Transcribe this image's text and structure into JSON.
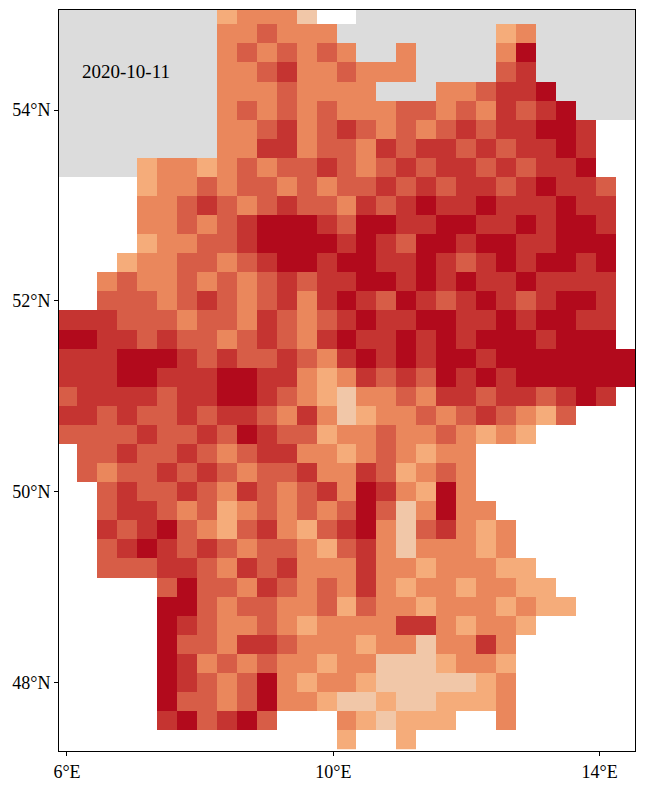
{
  "chart_data": {
    "type": "heatmap",
    "title": "2020-10-11",
    "x": [
      6,
      6.3,
      6.6,
      6.9,
      7.2,
      7.5,
      7.8,
      8.1,
      8.4,
      8.7,
      9,
      9.3,
      9.6,
      9.9,
      10.2,
      10.5,
      10.8,
      11.1,
      11.4,
      11.7,
      12,
      12.3,
      12.6,
      12.9,
      13.2,
      13.5,
      13.8,
      14.1,
      14.4
    ],
    "y": [
      55,
      54.8,
      54.6,
      54.4,
      54.2,
      54,
      53.8,
      53.6,
      53.4,
      53.2,
      53,
      52.8,
      52.6,
      52.4,
      52.2,
      52,
      51.8,
      51.6,
      51.4,
      51.2,
      51,
      50.8,
      50.6,
      50.4,
      50.2,
      50,
      49.8,
      49.6,
      49.4,
      49.2,
      49,
      48.8,
      48.6,
      48.4,
      48.2,
      48,
      47.8,
      47.6,
      47.4
    ],
    "cells": [
      [
        0,
        0,
        0,
        0,
        0,
        0,
        0,
        0,
        2,
        3,
        3,
        3,
        1,
        null,
        null,
        0,
        0,
        0,
        0,
        0,
        0,
        0,
        0,
        0,
        0,
        0,
        0,
        0,
        0
      ],
      [
        0,
        0,
        0,
        0,
        0,
        0,
        0,
        0,
        3,
        3,
        4,
        3,
        3,
        3,
        0,
        0,
        0,
        0,
        0,
        0,
        0,
        0,
        2,
        3,
        0,
        0,
        0,
        0,
        0
      ],
      [
        0,
        0,
        0,
        0,
        0,
        0,
        0,
        0,
        3,
        4,
        3,
        4,
        3,
        4,
        3,
        0,
        0,
        3,
        0,
        0,
        0,
        0,
        3,
        6,
        0,
        0,
        0,
        0,
        0
      ],
      [
        0,
        0,
        0,
        0,
        0,
        0,
        0,
        0,
        3,
        3,
        4,
        5,
        3,
        3,
        4,
        3,
        3,
        3,
        0,
        0,
        0,
        0,
        4,
        5,
        0,
        0,
        0,
        0,
        0
      ],
      [
        0,
        0,
        0,
        0,
        0,
        0,
        0,
        0,
        3,
        3,
        3,
        4,
        3,
        3,
        3,
        3,
        0,
        0,
        0,
        3,
        3,
        4,
        5,
        5,
        6,
        0,
        0,
        0,
        0
      ],
      [
        0,
        0,
        0,
        0,
        0,
        0,
        0,
        0,
        3,
        4,
        3,
        4,
        3,
        4,
        3,
        3,
        3,
        4,
        4,
        3,
        4,
        3,
        5,
        4,
        5,
        6,
        0,
        0,
        0
      ],
      [
        0,
        0,
        0,
        0,
        0,
        0,
        0,
        0,
        3,
        3,
        4,
        5,
        3,
        4,
        5,
        4,
        3,
        4,
        3,
        4,
        5,
        4,
        5,
        5,
        6,
        6,
        5,
        null,
        null
      ],
      [
        0,
        0,
        0,
        0,
        0,
        0,
        0,
        0,
        3,
        3,
        5,
        5,
        3,
        4,
        4,
        3,
        5,
        4,
        5,
        5,
        4,
        5,
        4,
        5,
        5,
        6,
        5,
        null,
        null
      ],
      [
        0,
        0,
        0,
        0,
        2,
        3,
        3,
        2,
        3,
        4,
        3,
        4,
        4,
        5,
        4,
        3,
        4,
        5,
        4,
        5,
        5,
        4,
        5,
        4,
        5,
        5,
        6,
        null,
        null
      ],
      [
        null,
        null,
        null,
        null,
        2,
        3,
        3,
        4,
        3,
        4,
        4,
        3,
        4,
        3,
        4,
        4,
        5,
        4,
        5,
        4,
        5,
        5,
        4,
        5,
        6,
        5,
        5,
        4,
        null
      ],
      [
        null,
        null,
        null,
        null,
        3,
        3,
        4,
        5,
        4,
        3,
        4,
        5,
        4,
        4,
        3,
        5,
        4,
        5,
        6,
        5,
        5,
        6,
        5,
        5,
        5,
        6,
        5,
        5,
        null
      ],
      [
        null,
        null,
        null,
        null,
        3,
        3,
        4,
        3,
        4,
        5,
        6,
        6,
        6,
        5,
        4,
        6,
        6,
        5,
        5,
        6,
        6,
        5,
        5,
        6,
        5,
        6,
        6,
        5,
        null
      ],
      [
        null,
        null,
        null,
        null,
        2,
        3,
        3,
        4,
        4,
        5,
        6,
        6,
        6,
        6,
        5,
        6,
        5,
        4,
        6,
        6,
        5,
        6,
        6,
        5,
        5,
        6,
        6,
        6,
        null
      ],
      [
        null,
        null,
        null,
        2,
        3,
        3,
        4,
        4,
        3,
        4,
        5,
        6,
        6,
        5,
        6,
        6,
        5,
        5,
        6,
        5,
        4,
        5,
        6,
        5,
        6,
        6,
        5,
        6,
        null
      ],
      [
        null,
        null,
        3,
        4,
        3,
        3,
        4,
        3,
        4,
        3,
        4,
        5,
        4,
        5,
        5,
        6,
        6,
        5,
        6,
        5,
        6,
        5,
        5,
        6,
        5,
        5,
        5,
        5,
        null
      ],
      [
        null,
        null,
        4,
        4,
        4,
        3,
        4,
        5,
        4,
        3,
        4,
        5,
        3,
        5,
        6,
        5,
        4,
        6,
        5,
        4,
        5,
        6,
        5,
        4,
        5,
        6,
        6,
        5,
        null
      ],
      [
        5,
        5,
        5,
        4,
        4,
        4,
        3,
        4,
        4,
        3,
        5,
        4,
        3,
        4,
        5,
        6,
        5,
        5,
        6,
        6,
        5,
        5,
        6,
        5,
        6,
        6,
        5,
        5,
        null
      ],
      [
        6,
        6,
        5,
        5,
        4,
        5,
        4,
        4,
        3,
        4,
        5,
        4,
        3,
        5,
        6,
        5,
        5,
        6,
        5,
        6,
        5,
        6,
        6,
        6,
        5,
        6,
        6,
        6,
        null
      ],
      [
        5,
        5,
        5,
        6,
        6,
        6,
        5,
        4,
        5,
        4,
        4,
        5,
        4,
        3,
        5,
        6,
        5,
        6,
        5,
        6,
        6,
        5,
        6,
        6,
        6,
        6,
        6,
        6,
        6
      ],
      [
        5,
        5,
        5,
        6,
        6,
        5,
        5,
        5,
        6,
        6,
        5,
        5,
        3,
        2,
        3,
        5,
        4,
        5,
        4,
        6,
        5,
        6,
        5,
        6,
        6,
        6,
        6,
        6,
        6
      ],
      [
        4,
        5,
        5,
        5,
        5,
        4,
        5,
        5,
        6,
        6,
        5,
        4,
        3,
        2,
        1,
        3,
        3,
        4,
        3,
        5,
        5,
        4,
        5,
        5,
        4,
        5,
        6,
        5,
        null
      ],
      [
        5,
        5,
        4,
        5,
        4,
        4,
        5,
        4,
        5,
        5,
        4,
        3,
        5,
        3,
        1,
        2,
        3,
        3,
        4,
        3,
        4,
        5,
        4,
        3,
        2,
        4,
        null,
        null,
        null
      ],
      [
        4,
        4,
        4,
        4,
        5,
        4,
        4,
        5,
        4,
        6,
        5,
        4,
        4,
        2,
        3,
        3,
        4,
        3,
        3,
        4,
        3,
        2,
        3,
        2,
        null,
        null,
        null,
        null,
        null
      ],
      [
        null,
        4,
        4,
        5,
        4,
        4,
        5,
        4,
        3,
        4,
        5,
        5,
        3,
        3,
        2,
        3,
        4,
        3,
        2,
        3,
        3,
        null,
        null,
        null,
        null,
        null,
        null,
        null,
        null
      ],
      [
        null,
        4,
        3,
        4,
        4,
        5,
        4,
        5,
        4,
        3,
        4,
        4,
        5,
        3,
        3,
        5,
        4,
        2,
        3,
        4,
        3,
        null,
        null,
        null,
        null,
        null,
        null,
        null,
        null
      ],
      [
        null,
        null,
        4,
        5,
        4,
        4,
        5,
        4,
        3,
        5,
        4,
        3,
        4,
        5,
        3,
        6,
        5,
        3,
        2,
        6,
        3,
        null,
        null,
        null,
        null,
        null,
        null,
        null,
        null
      ],
      [
        null,
        null,
        4,
        5,
        5,
        4,
        3,
        4,
        2,
        3,
        4,
        3,
        4,
        3,
        4,
        6,
        4,
        1,
        3,
        6,
        3,
        3,
        null,
        null,
        null,
        null,
        null,
        null,
        null
      ],
      [
        null,
        null,
        5,
        4,
        5,
        6,
        4,
        3,
        2,
        4,
        5,
        3,
        2,
        4,
        5,
        6,
        3,
        1,
        4,
        5,
        3,
        2,
        3,
        null,
        null,
        null,
        null,
        null,
        null
      ],
      [
        null,
        null,
        4,
        5,
        6,
        5,
        4,
        5,
        4,
        3,
        4,
        4,
        3,
        2,
        4,
        5,
        3,
        1,
        3,
        3,
        3,
        2,
        3,
        null,
        null,
        null,
        null,
        null,
        null
      ],
      [
        null,
        null,
        4,
        4,
        4,
        5,
        5,
        4,
        3,
        5,
        4,
        5,
        3,
        3,
        3,
        5,
        3,
        3,
        2,
        3,
        3,
        3,
        2,
        2,
        null,
        null,
        null,
        null,
        null
      ],
      [
        null,
        null,
        null,
        null,
        null,
        4,
        6,
        4,
        4,
        3,
        5,
        4,
        3,
        4,
        3,
        5,
        3,
        2,
        3,
        3,
        2,
        3,
        3,
        2,
        2,
        null,
        null,
        null,
        null
      ],
      [
        null,
        null,
        null,
        null,
        null,
        6,
        6,
        4,
        3,
        4,
        4,
        3,
        3,
        4,
        2,
        4,
        3,
        3,
        2,
        3,
        3,
        3,
        2,
        3,
        2,
        2,
        null,
        null,
        null
      ],
      [
        null,
        null,
        null,
        null,
        null,
        6,
        5,
        4,
        3,
        3,
        4,
        3,
        2,
        3,
        3,
        3,
        3,
        5,
        5,
        3,
        2,
        3,
        3,
        2,
        null,
        null,
        null,
        null,
        null
      ],
      [
        null,
        null,
        null,
        null,
        null,
        6,
        4,
        4,
        3,
        5,
        5,
        4,
        3,
        3,
        3,
        2,
        3,
        3,
        1,
        3,
        3,
        5,
        3,
        null,
        null,
        null,
        null,
        null,
        null
      ],
      [
        null,
        null,
        null,
        null,
        null,
        6,
        5,
        3,
        4,
        3,
        4,
        3,
        3,
        2,
        3,
        3,
        1,
        1,
        1,
        2,
        3,
        3,
        2,
        null,
        null,
        null,
        null,
        null,
        null
      ],
      [
        null,
        null,
        null,
        null,
        null,
        6,
        5,
        4,
        3,
        4,
        6,
        3,
        2,
        3,
        3,
        2,
        1,
        1,
        1,
        1,
        1,
        2,
        3,
        null,
        null,
        null,
        null,
        null,
        null
      ],
      [
        null,
        null,
        null,
        null,
        null,
        6,
        4,
        4,
        3,
        4,
        6,
        3,
        3,
        2,
        1,
        1,
        2,
        1,
        1,
        2,
        2,
        2,
        3,
        null,
        null,
        null,
        null,
        null,
        null
      ],
      [
        null,
        null,
        null,
        null,
        null,
        5,
        6,
        4,
        5,
        6,
        4,
        null,
        null,
        null,
        3,
        2,
        1,
        2,
        2,
        2,
        null,
        null,
        3,
        null,
        null,
        null,
        null,
        null,
        null
      ],
      [
        null,
        null,
        null,
        null,
        null,
        null,
        null,
        null,
        null,
        null,
        null,
        null,
        null,
        null,
        2,
        null,
        null,
        2,
        null,
        null,
        null,
        null,
        null,
        null,
        null,
        null,
        null,
        null,
        null
      ]
    ],
    "zlim": [
      0,
      6
    ],
    "colors": [
      "#97b6e1",
      "#ffffff",
      "#ffff00",
      "#fcd37f",
      "#ffaa00",
      "#e60000",
      "#730000"
    ],
    "xlim": [
      5.88,
      14.53
    ],
    "ylim": [
      47.28,
      55.05
    ],
    "xticks": [
      {
        "value": 6,
        "label": "6°E"
      },
      {
        "value": 10,
        "label": "10°E"
      },
      {
        "value": 14,
        "label": "14°E"
      }
    ],
    "yticks": [
      {
        "value": 48,
        "label": "48°N"
      },
      {
        "value": 50,
        "label": "50°N"
      },
      {
        "value": 52,
        "label": "52°N"
      },
      {
        "value": 54,
        "label": "54°N"
      }
    ],
    "grid": false
  }
}
